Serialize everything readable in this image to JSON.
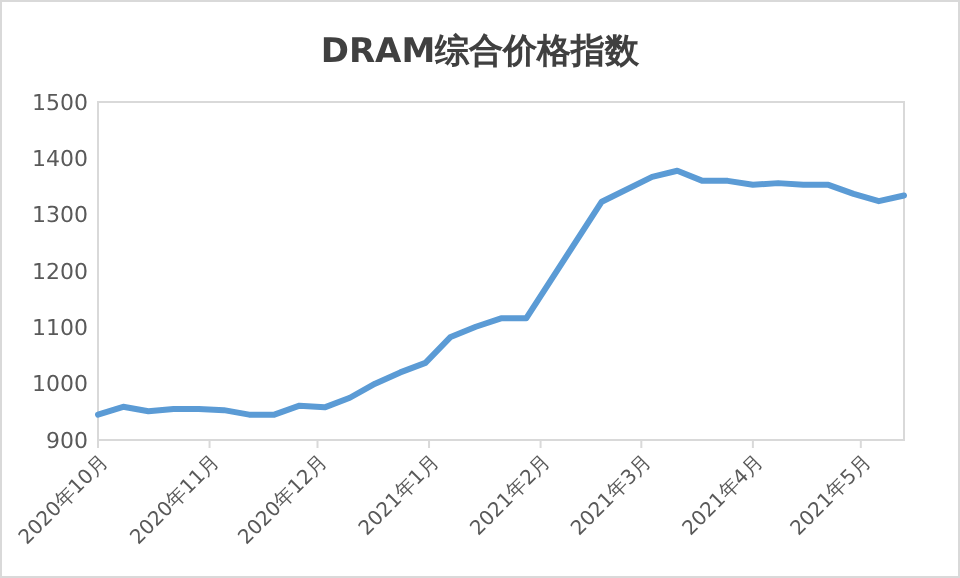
{
  "chart_data": {
    "type": "line",
    "title": "DRAM综合价格指数",
    "x": [
      "2020-10-01",
      "2020-10-08",
      "2020-10-15",
      "2020-10-22",
      "2020-10-29",
      "2020-11-05",
      "2020-11-12",
      "2020-11-19",
      "2020-11-26",
      "2020-12-03",
      "2020-12-10",
      "2020-12-17",
      "2020-12-24",
      "2020-12-31",
      "2021-01-07",
      "2021-01-14",
      "2021-01-21",
      "2021-01-28",
      "2021-02-18",
      "2021-03-04",
      "2021-03-11",
      "2021-03-18",
      "2021-03-25",
      "2021-04-01",
      "2021-04-08",
      "2021-04-15",
      "2021-04-22",
      "2021-04-29",
      "2021-05-06",
      "2021-05-13"
    ],
    "series": [
      {
        "color": "#5b9bd5",
        "values": [
          945,
          959,
          951,
          955,
          955,
          953,
          945,
          945,
          961,
          958,
          975,
          1000,
          1020,
          1037,
          1083,
          1101,
          1116,
          1116,
          1323,
          1367,
          1378,
          1360,
          1360,
          1353,
          1356,
          1353,
          1353,
          1337,
          1324,
          1334
        ]
      }
    ],
    "xlim": [
      "2020-10-01",
      "2021-05-13"
    ],
    "xticks": [
      {
        "value": "2020-10-01",
        "label": "2020年10月"
      },
      {
        "value": "2020-11-01",
        "label": "2020年11月"
      },
      {
        "value": "2020-12-01",
        "label": "2020年12月"
      },
      {
        "value": "2021-01-01",
        "label": "2021年1月"
      },
      {
        "value": "2021-02-01",
        "label": "2021年2月"
      },
      {
        "value": "2021-03-01",
        "label": "2021年3月"
      },
      {
        "value": "2021-04-01",
        "label": "2021年4月"
      },
      {
        "value": "2021-05-01",
        "label": "2021年5月"
      }
    ],
    "ylim": [
      900,
      1500
    ],
    "yticks": [
      900,
      1000,
      1100,
      1200,
      1300,
      1400,
      1500
    ],
    "grid": false,
    "marker": "none",
    "line_style": "solid"
  }
}
